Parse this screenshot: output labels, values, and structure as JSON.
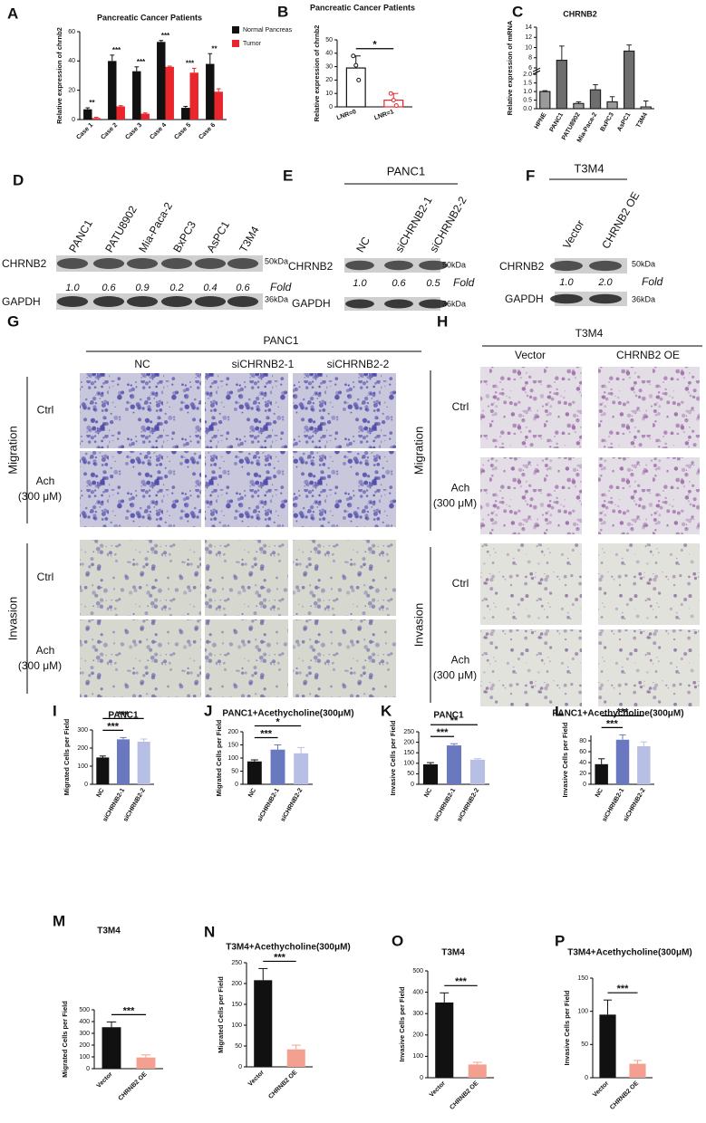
{
  "chart_data": [
    {
      "letter": "A",
      "type": "bar",
      "title": "Pancreatic Cancer Patients",
      "ylabel": "Relative expression of chrnb2",
      "categories": [
        "Case 1",
        "Case 2",
        "Case 3",
        "Case 4",
        "Case 5",
        "Case 6"
      ],
      "series": [
        {
          "name": "Normal Pancreas",
          "color": "#111111",
          "values": [
            7,
            40,
            33,
            53,
            8,
            38
          ],
          "errors": [
            1,
            4,
            3,
            1,
            1,
            7
          ]
        },
        {
          "name": "Tumor",
          "color": "#e8262b",
          "values": [
            1,
            9,
            4,
            36,
            32,
            19
          ],
          "errors": [
            0.5,
            0.5,
            0.5,
            0.5,
            3,
            2
          ]
        }
      ],
      "annotations": [
        "**",
        "***",
        "***",
        "***",
        "***",
        "**"
      ],
      "ylim": [
        0,
        60
      ],
      "yticks": [
        0,
        20,
        40,
        60
      ],
      "legend": "right"
    },
    {
      "letter": "B",
      "type": "bar",
      "title": "Pancreatic Cancer Patients",
      "ylabel": "Relative expression of chrnb2",
      "categories": [
        "LNR=0",
        "LNR=1"
      ],
      "values": [
        29,
        5
      ],
      "errors": [
        9,
        5
      ],
      "colors": [
        "#111111",
        "#e8262b"
      ],
      "bar_fill": "#ffffff",
      "points": [
        [
          38,
          31,
          20
        ],
        [
          10,
          5,
          1
        ]
      ],
      "annotations": [
        "*"
      ],
      "ylim": [
        0,
        50
      ],
      "yticks": [
        0,
        10,
        20,
        30,
        40,
        50
      ]
    },
    {
      "letter": "C",
      "type": "bar",
      "title": "CHRNB2",
      "ylabel": "Relative expression of mRNA",
      "categories": [
        "HPNE",
        "PANC1",
        "PATU8902",
        "Mia-Paca-2",
        "BxPC3",
        "AsPC1",
        "T3M4"
      ],
      "values": [
        1,
        7.5,
        0.3,
        1.1,
        0.4,
        9.3,
        0.1
      ],
      "errors": [
        0.05,
        2.8,
        0.1,
        0.3,
        0.3,
        1.2,
        0.35
      ],
      "colors": [
        "#9a9a9a",
        "#6e6e6e",
        "#9a9a9a",
        "#6e6e6e",
        "#9a9a9a",
        "#6e6e6e",
        "#ffffff"
      ],
      "bar_stroke": "#222222",
      "ylim": [
        0,
        14
      ],
      "ybreak": [
        2,
        6
      ],
      "yticks": [
        {
          "value": 0,
          "label": "0.0"
        },
        {
          "value": 0.5,
          "label": "0.5"
        },
        {
          "value": 1,
          "label": "1.0"
        },
        {
          "value": 1.5,
          "label": "1.5"
        },
        {
          "value": 2,
          "label": "2.0"
        },
        6,
        8,
        10,
        12,
        14
      ]
    },
    {
      "letter": "I",
      "type": "bar",
      "title": "PANC1",
      "ylabel": "Migrated Cells per Field",
      "categories": [
        "NC",
        "siCHRNB2-1",
        "siCHRNB2-2"
      ],
      "values": [
        148,
        248,
        235
      ],
      "errors": [
        8,
        10,
        15
      ],
      "colors": [
        "#111111",
        "#6a78c0",
        "#b8bfe4"
      ],
      "annotations": [
        "***",
        "***"
      ],
      "ylim": [
        0,
        300
      ],
      "yticks": [
        0,
        100,
        200,
        300
      ]
    },
    {
      "letter": "J",
      "type": "bar",
      "title": "PANC1+Acethycholine(300μM)",
      "ylabel": "Migrated Cells per Field",
      "categories": [
        "NC",
        "siCHRNB2-1",
        "siCHRNB2-2"
      ],
      "values": [
        87,
        132,
        118
      ],
      "errors": [
        6,
        18,
        22
      ],
      "colors": [
        "#111111",
        "#6a78c0",
        "#b8bfe4"
      ],
      "annotations": [
        "***",
        "*"
      ],
      "ylim": [
        0,
        200
      ],
      "yticks": [
        0,
        50,
        100,
        150,
        200
      ]
    },
    {
      "letter": "K",
      "type": "bar",
      "title": "PANC1",
      "ylabel": "Invasive Cells per Field",
      "categories": [
        "NC",
        "siCHRNB2-1",
        "siCHRNB2-2"
      ],
      "values": [
        95,
        185,
        117
      ],
      "errors": [
        8,
        8,
        5
      ],
      "colors": [
        "#111111",
        "#6a78c0",
        "#b8bfe4"
      ],
      "annotations": [
        "***",
        "**"
      ],
      "ylim": [
        0,
        250
      ],
      "yticks": [
        0,
        50,
        100,
        150,
        200,
        250
      ]
    },
    {
      "letter": "L",
      "type": "bar",
      "title": "PANC1+Acethycholine(300μM)",
      "ylabel": "Invasive Cells per Field",
      "categories": [
        "NC",
        "siCHRNB2-1",
        "siCHRNB2-2"
      ],
      "values": [
        37,
        82,
        70
      ],
      "errors": [
        10,
        9,
        8
      ],
      "colors": [
        "#111111",
        "#6a78c0",
        "#b8bfe4"
      ],
      "annotations": [
        "***",
        "***"
      ],
      "ylim": [
        0,
        90
      ],
      "yticks": [
        0,
        20,
        40,
        60,
        80
      ]
    },
    {
      "letter": "M",
      "type": "bar",
      "title": "T3M4",
      "ylabel": "Migrated Cells per Field",
      "categories": [
        "Vector",
        "CHRNB2 OE"
      ],
      "values": [
        352,
        95
      ],
      "errors": [
        45,
        22
      ],
      "colors": [
        "#111111",
        "#f4a090"
      ],
      "annotations": [
        "***"
      ],
      "ylim": [
        0,
        500
      ],
      "yticks": [
        0,
        100,
        200,
        300,
        400,
        500
      ]
    },
    {
      "letter": "N",
      "type": "bar",
      "title": "T3M4+Acethycholine(300μM)",
      "ylabel": "Migrated Cells per Field",
      "categories": [
        "Vector",
        "CHRNB2 OE"
      ],
      "values": [
        208,
        42
      ],
      "errors": [
        28,
        10
      ],
      "colors": [
        "#111111",
        "#f4a090"
      ],
      "annotations": [
        "***"
      ],
      "ylim": [
        0,
        250
      ],
      "yticks": [
        0,
        50,
        100,
        150,
        200,
        250
      ]
    },
    {
      "letter": "O",
      "type": "bar",
      "title": "T3M4",
      "ylabel": "Invasive Cells per Field",
      "categories": [
        "Vector",
        "CHRNB2 OE"
      ],
      "values": [
        352,
        62
      ],
      "errors": [
        45,
        10
      ],
      "colors": [
        "#111111",
        "#f4a090"
      ],
      "annotations": [
        "***"
      ],
      "ylim": [
        0,
        500
      ],
      "yticks": [
        0,
        100,
        200,
        300,
        400,
        500
      ]
    },
    {
      "letter": "P",
      "type": "bar",
      "title": "T3M4+Acethycholine(300μM)",
      "ylabel": "Invasive Cells per Field",
      "categories": [
        "Vector",
        "CHRNB2 OE"
      ],
      "values": [
        95,
        21
      ],
      "errors": [
        22,
        5
      ],
      "colors": [
        "#111111",
        "#f4a090"
      ],
      "annotations": [
        "***"
      ],
      "ylim": [
        0,
        150
      ],
      "yticks": [
        0,
        50,
        100,
        150
      ]
    }
  ],
  "blots": [
    {
      "letter": "D",
      "lanes": [
        "PANC1",
        "PATU8902",
        "Mia-Paca-2",
        "BxPC3",
        "AsPC1",
        "T3M4"
      ],
      "rows": [
        "CHRNB2",
        "GAPDH"
      ],
      "markers": [
        "50kDa",
        "36kDa"
      ],
      "folds": [
        "1.0",
        "0.6",
        "0.9",
        "0.2",
        "0.4",
        "0.6"
      ],
      "fold_label": "Fold"
    },
    {
      "letter": "E",
      "header": "PANC1",
      "lanes": [
        "NC",
        "siCHRNB2-1",
        "siCHRNB2-2"
      ],
      "rows": [
        "CHRNB2",
        "GAPDH"
      ],
      "markers": [
        "50kDa",
        "36kDa"
      ],
      "folds": [
        "1.0",
        "0.6",
        "0.5"
      ],
      "fold_label": "Fold"
    },
    {
      "letter": "F",
      "header": "T3M4",
      "lanes": [
        "Vector",
        "CHRNB2 OE"
      ],
      "rows": [
        "CHRNB2",
        "GAPDH"
      ],
      "markers": [
        "50kDa",
        "36kDa"
      ],
      "folds": [
        "1.0",
        "2.0"
      ],
      "fold_label": "Fold"
    }
  ],
  "micrographs": [
    {
      "letter": "G",
      "header": "PANC1",
      "columns": [
        "NC",
        "siCHRNB2-1",
        "siCHRNB2-2"
      ],
      "groups": [
        "Migration",
        "Invasion"
      ],
      "row_labels": [
        [
          "Ctrl"
        ],
        [
          "Ach",
          "(300 μM)"
        ]
      ]
    },
    {
      "letter": "H",
      "header": "T3M4",
      "columns": [
        "Vector",
        "CHRNB2 OE"
      ],
      "groups": [
        "Migration",
        "Invasion"
      ],
      "row_labels": [
        [
          "Ctrl"
        ],
        [
          "Ach",
          "(300 μM)"
        ]
      ]
    }
  ]
}
